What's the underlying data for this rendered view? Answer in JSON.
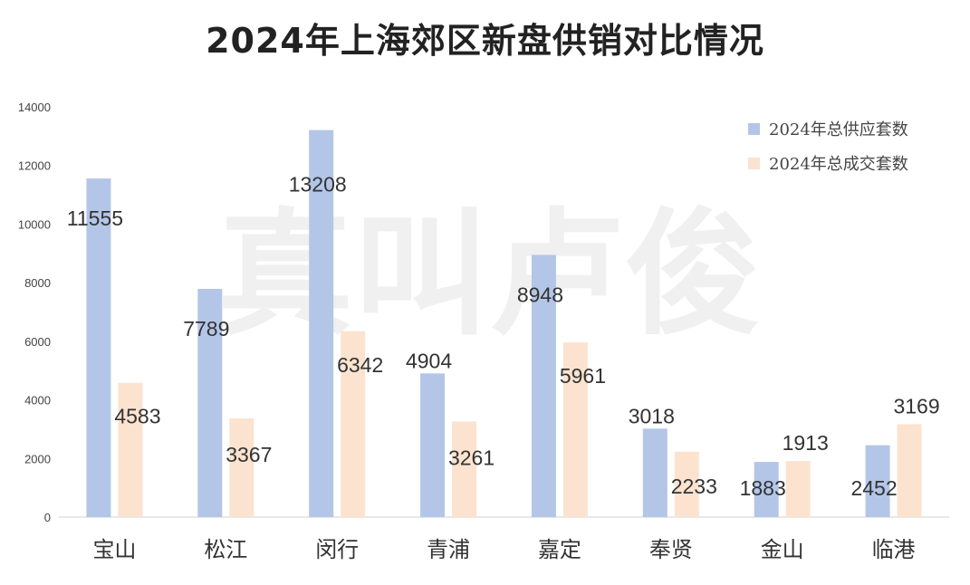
{
  "chart_data": {
    "type": "bar",
    "title": "2024年上海郊区新盘供销对比情况",
    "categories": [
      "宝山",
      "松江",
      "闵行",
      "青浦",
      "嘉定",
      "奉贤",
      "金山",
      "临港"
    ],
    "series": [
      {
        "name": "2024年总供应套数",
        "values": [
          11555,
          7789,
          13208,
          4904,
          8948,
          3018,
          1883,
          2452
        ],
        "color": "#b3c6e8"
      },
      {
        "name": "2024年总成交套数",
        "values": [
          4583,
          3367,
          6342,
          3261,
          5961,
          2233,
          1913,
          3169
        ],
        "color": "#fbe3cf"
      }
    ],
    "ylim": [
      0,
      14000
    ],
    "yticks": [
      0,
      2000,
      4000,
      6000,
      8000,
      10000,
      12000,
      14000
    ],
    "grid": false,
    "legend_position": "top-right"
  },
  "watermark": {
    "text": "真叫卢俊",
    "color": "#f0f0f0"
  }
}
